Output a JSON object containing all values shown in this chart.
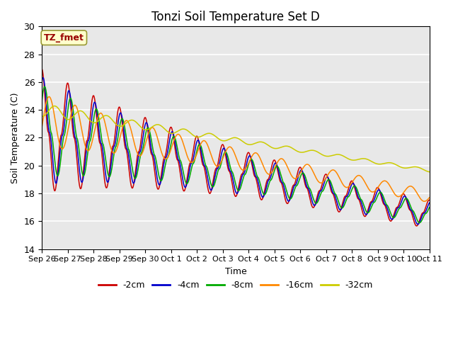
{
  "title": "Tonzi Soil Temperature Set D",
  "xlabel": "Time",
  "ylabel": "Soil Temperature (C)",
  "ylim": [
    14,
    30
  ],
  "yticks": [
    14,
    16,
    18,
    20,
    22,
    24,
    26,
    28,
    30
  ],
  "legend_label": "TZ_fmet",
  "series_labels": [
    "-2cm",
    "-4cm",
    "-8cm",
    "-16cm",
    "-32cm"
  ],
  "series_colors": [
    "#cc0000",
    "#0000cc",
    "#00aa00",
    "#ff8800",
    "#cccc00"
  ],
  "background_color": "#e8e8e8",
  "n_points": 1500,
  "x_start": 0,
  "x_end": 15,
  "xtick_positions": [
    0,
    1,
    2,
    3,
    4,
    5,
    6,
    7,
    8,
    9,
    10,
    11,
    12,
    13,
    14,
    15
  ],
  "xtick_labels": [
    "Sep 26",
    "Sep 27",
    "Sep 28",
    "Sep 29",
    "Sep 30",
    "Oct 1",
    "Oct 2",
    "Oct 3",
    "Oct 4",
    "Oct 5",
    "Oct 6",
    "Oct 7",
    "Oct 8",
    "Oct 9",
    "Oct 10",
    "Oct 11"
  ]
}
